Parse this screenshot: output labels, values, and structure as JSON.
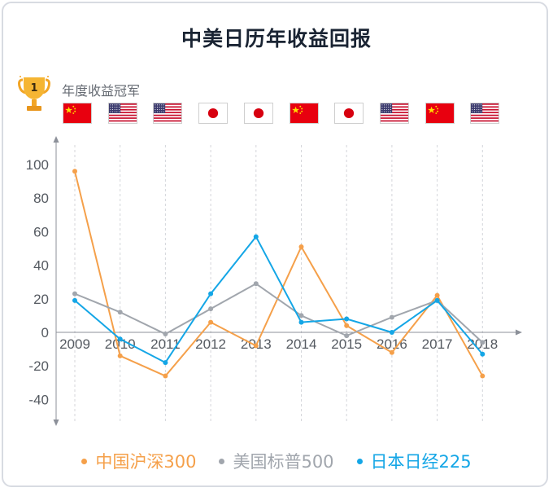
{
  "title": "中美日历年收益回报",
  "champion_label": "年度收益冠军",
  "champions": [
    "china",
    "usa",
    "usa",
    "japan",
    "japan",
    "china",
    "japan",
    "usa",
    "china",
    "usa"
  ],
  "chart_data": {
    "type": "line",
    "x": [
      "2009",
      "2010",
      "2011",
      "2012",
      "2013",
      "2014",
      "2015",
      "2016",
      "2017",
      "2018"
    ],
    "ylim": [
      -50,
      110
    ],
    "yticks": [
      "100",
      "80",
      "60",
      "40",
      "20",
      "0",
      "-20",
      "-40"
    ],
    "ytick_values": [
      100,
      80,
      60,
      40,
      20,
      0,
      -20,
      -40
    ],
    "grid": "vertical-dashed",
    "legend_position": "bottom",
    "series": [
      {
        "name": "中国沪深300",
        "color": "#f5a04a",
        "values": [
          96,
          -14,
          -26,
          6,
          -8,
          51,
          4,
          -12,
          22,
          -26
        ]
      },
      {
        "name": "美国标普500",
        "color": "#a1a6ad",
        "values": [
          23,
          12,
          -1,
          14,
          29,
          10,
          -2,
          9,
          19,
          -6
        ]
      },
      {
        "name": "日本日经225",
        "color": "#14a6e6",
        "values": [
          19,
          -4,
          -18,
          23,
          57,
          6,
          8,
          0,
          19,
          -13
        ]
      }
    ]
  },
  "colors": {
    "china_red": "#e8000f",
    "usa_blue": "#3c3b6e",
    "usa_red": "#c8102e",
    "japan_red": "#d7000f"
  }
}
